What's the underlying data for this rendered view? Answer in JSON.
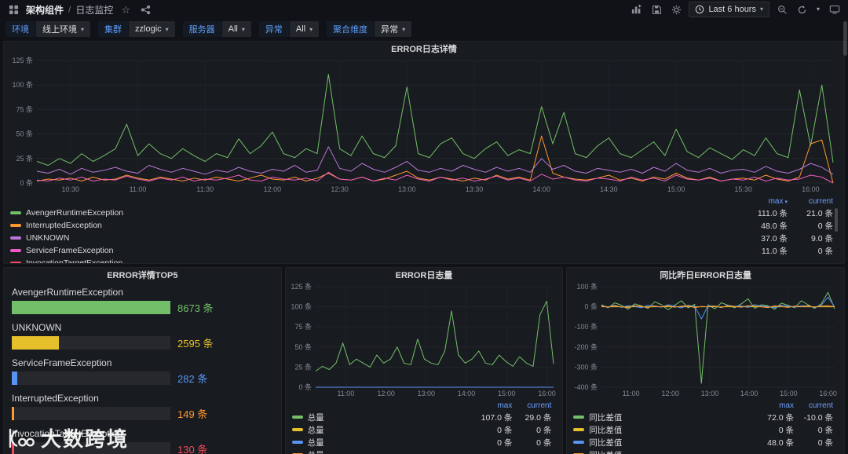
{
  "colors": {
    "green": "#73bf69",
    "orange": "#ff9830",
    "purple": "#b877d9",
    "pink": "#ee5cc0",
    "yellow": "#e6c02b",
    "blue": "#5794f2",
    "red": "#f2495c",
    "accent_blue": "#6e9fff",
    "panel_bg": "#181b1f",
    "page_bg": "#111217"
  },
  "icons": {
    "topbar_left": [
      "grid-icon",
      "star-icon",
      "share-icon"
    ],
    "topbar_right": [
      "add-panel-icon",
      "save-icon",
      "gear-icon",
      "clock-icon",
      "chevron-down-icon",
      "zoom-out-icon",
      "refresh-icon",
      "tv-icon"
    ]
  },
  "topbar": {
    "breadcrumb": {
      "section": "架构组件",
      "separator": "/",
      "page": "日志监控"
    },
    "star_glyph": "☆",
    "time_range_label": "Last 6 hours"
  },
  "filters": [
    {
      "label": "环境",
      "value": "线上环境"
    },
    {
      "label": "集群",
      "value": "zzlogic"
    },
    {
      "label": "服务器",
      "value": "All"
    },
    {
      "label": "异常",
      "value": "All"
    },
    {
      "label": "聚合维度",
      "value": "异常"
    }
  ],
  "main_panel": {
    "title": "ERROR日志详情",
    "legend": {
      "headers": {
        "max": "max",
        "current": "current"
      },
      "rows": [
        {
          "name": "AvengerRuntimeException",
          "color": "#73bf69",
          "max": "111.0 条",
          "current": "21.0 条"
        },
        {
          "name": "InterruptedException",
          "color": "#ff9830",
          "max": "48.0 条",
          "current": "0 条"
        },
        {
          "name": "UNKNOWN",
          "color": "#b877d9",
          "max": "37.0 条",
          "current": "9.0 条"
        },
        {
          "name": "ServiceFrameException",
          "color": "#ee5cc0",
          "max": "11.0 条",
          "current": "0 条"
        },
        {
          "name": "InvocationTargetException",
          "color": "#f2495c",
          "max": "",
          "current": ""
        }
      ]
    }
  },
  "bottom_panels": {
    "top5": {
      "title": "ERROR详情TOP5",
      "max_value": 8673,
      "rows": [
        {
          "name": "AvengerRuntimeException",
          "value": 8673,
          "value_label": "8673 条",
          "color": "#73bf69"
        },
        {
          "name": "UNKNOWN",
          "value": 2595,
          "value_label": "2595 条",
          "color": "#e6c02b"
        },
        {
          "name": "ServiceFrameException",
          "value": 282,
          "value_label": "282 条",
          "color": "#5794f2"
        },
        {
          "name": "InterruptedException",
          "value": 149,
          "value_label": "149 条",
          "color": "#ff9830"
        },
        {
          "name": "InvocationTargetException",
          "value": 130,
          "value_label": "130 条",
          "color": "#f2495c"
        }
      ]
    },
    "volume": {
      "title": "ERROR日志量",
      "legend": {
        "headers": {
          "max": "max",
          "current": "current"
        },
        "rows": [
          {
            "name": "总量",
            "color": "#73bf69",
            "max": "107.0 条",
            "current": "29.0 条"
          },
          {
            "name": "总量",
            "color": "#e6c02b",
            "max": "0 条",
            "current": "0 条"
          },
          {
            "name": "总量",
            "color": "#5794f2",
            "max": "0 条",
            "current": "0 条"
          },
          {
            "name": "总量",
            "color": "#ff9830",
            "max": "",
            "current": ""
          }
        ]
      }
    },
    "compare": {
      "title": "同比昨日ERROR日志量",
      "legend": {
        "headers": {
          "max": "max",
          "current": "current"
        },
        "rows": [
          {
            "name": "同比差值",
            "color": "#73bf69",
            "max": "72.0 条",
            "current": "-10.0 条"
          },
          {
            "name": "同比差值",
            "color": "#e6c02b",
            "max": "0 条",
            "current": "0 条"
          },
          {
            "name": "同比差值",
            "color": "#5794f2",
            "max": "48.0 条",
            "current": "0 条"
          },
          {
            "name": "同比差值",
            "color": "#ff9830",
            "max": "",
            "current": ""
          }
        ]
      }
    }
  },
  "chart_data": [
    {
      "id": "error-detail",
      "type": "line",
      "title": "ERROR日志详情",
      "x_start": "10:15",
      "x_end": "16:10",
      "x_ticks": [
        "10:30",
        "11:00",
        "11:30",
        "12:00",
        "12:30",
        "13:00",
        "13:30",
        "14:00",
        "14:30",
        "15:00",
        "15:30",
        "16:00"
      ],
      "ylim": [
        0,
        125
      ],
      "y_ticks": [
        0,
        25,
        50,
        75,
        100,
        125
      ],
      "y_unit": "条",
      "grid": true,
      "legend_position": "bottom",
      "y_label_width": 36,
      "series": [
        {
          "name": "AvengerRuntimeException",
          "color": "#73bf69",
          "values": [
            22,
            18,
            25,
            20,
            30,
            22,
            28,
            35,
            60,
            28,
            40,
            30,
            25,
            35,
            28,
            22,
            30,
            26,
            45,
            30,
            38,
            52,
            30,
            26,
            35,
            30,
            111,
            35,
            28,
            48,
            30,
            26,
            38,
            98,
            30,
            26,
            40,
            46,
            30,
            25,
            35,
            42,
            28,
            34,
            30,
            78,
            40,
            72,
            30,
            26,
            38,
            46,
            30,
            26,
            34,
            42,
            28,
            55,
            32,
            26,
            36,
            30,
            24,
            34,
            28,
            46,
            30,
            26,
            95,
            38,
            100,
            21
          ]
        },
        {
          "name": "InterruptedException",
          "color": "#ff9830",
          "values": [
            2,
            4,
            3,
            5,
            2,
            6,
            3,
            4,
            8,
            5,
            3,
            6,
            4,
            2,
            5,
            3,
            6,
            4,
            2,
            5,
            8,
            4,
            3,
            6,
            2,
            5,
            10,
            4,
            3,
            6,
            2,
            4,
            8,
            12,
            5,
            3,
            6,
            4,
            2,
            5,
            3,
            8,
            4,
            6,
            3,
            48,
            10,
            6,
            4,
            3,
            5,
            8,
            3,
            5,
            2,
            6,
            4,
            10,
            5,
            3,
            6,
            2,
            4,
            5,
            3,
            8,
            4,
            2,
            6,
            40,
            44,
            0
          ]
        },
        {
          "name": "UNKNOWN",
          "color": "#b877d9",
          "values": [
            12,
            10,
            14,
            9,
            15,
            11,
            13,
            16,
            12,
            10,
            18,
            14,
            11,
            15,
            12,
            9,
            13,
            11,
            16,
            12,
            10,
            14,
            12,
            18,
            11,
            13,
            37,
            15,
            12,
            20,
            14,
            11,
            16,
            22,
            13,
            11,
            15,
            12,
            18,
            14,
            11,
            16,
            12,
            15,
            11,
            25,
            14,
            18,
            12,
            10,
            15,
            13,
            11,
            14,
            10,
            16,
            12,
            20,
            13,
            11,
            15,
            10,
            13,
            14,
            11,
            17,
            12,
            10,
            14,
            20,
            16,
            9
          ]
        },
        {
          "name": "ServiceFrameException",
          "color": "#ee5cc0",
          "values": [
            3,
            2,
            5,
            3,
            6,
            2,
            4,
            3,
            7,
            4,
            2,
            5,
            3,
            6,
            2,
            4,
            3,
            5,
            8,
            3,
            2,
            6,
            4,
            3,
            5,
            2,
            11,
            4,
            3,
            6,
            2,
            5,
            3,
            8,
            4,
            2,
            6,
            3,
            5,
            2,
            4,
            7,
            3,
            5,
            2,
            9,
            4,
            6,
            3,
            2,
            5,
            4,
            2,
            6,
            3,
            5,
            2,
            8,
            4,
            3,
            5,
            2,
            4,
            3,
            6,
            2,
            5,
            3,
            4,
            8,
            6,
            0
          ]
        }
      ]
    },
    {
      "id": "error-volume",
      "type": "line",
      "title": "ERROR日志量",
      "x_start": "10:15",
      "x_end": "16:10",
      "x_ticks": [
        "11:00",
        "12:00",
        "13:00",
        "14:00",
        "15:00",
        "16:00"
      ],
      "ylim": [
        0,
        125
      ],
      "y_ticks": [
        0,
        25,
        50,
        75,
        100,
        125
      ],
      "y_unit": "条",
      "grid": true,
      "legend_position": "bottom",
      "y_label_width": 34,
      "series": [
        {
          "name": "总量",
          "color": "#73bf69",
          "values": [
            20,
            26,
            22,
            30,
            55,
            28,
            35,
            30,
            25,
            40,
            30,
            35,
            50,
            30,
            28,
            60,
            35,
            30,
            28,
            45,
            95,
            40,
            30,
            35,
            45,
            30,
            28,
            40,
            32,
            26,
            38,
            30,
            26,
            90,
            107,
            29
          ]
        },
        {
          "name": "总量",
          "color": "#e6c02b",
          "values": [
            0,
            0,
            0,
            0,
            0,
            0,
            0,
            0,
            0,
            0,
            0,
            0,
            0,
            0,
            0,
            0,
            0,
            0,
            0,
            0,
            0,
            0,
            0,
            0,
            0,
            0,
            0,
            0,
            0,
            0,
            0,
            0,
            0,
            0,
            0,
            0
          ]
        },
        {
          "name": "总量",
          "color": "#5794f2",
          "values": [
            0,
            0,
            0,
            0,
            0,
            0,
            0,
            0,
            0,
            0,
            0,
            0,
            0,
            0,
            0,
            0,
            0,
            0,
            0,
            0,
            0,
            0,
            0,
            0,
            0,
            0,
            0,
            0,
            0,
            0,
            0,
            0,
            0,
            0,
            0,
            0
          ]
        }
      ]
    },
    {
      "id": "error-compare",
      "type": "line",
      "title": "同比昨日ERROR日志量",
      "x_start": "10:15",
      "x_end": "16:10",
      "x_ticks": [
        "11:00",
        "12:00",
        "13:00",
        "14:00",
        "15:00",
        "16:00"
      ],
      "ylim": [
        -400,
        100
      ],
      "y_ticks": [
        100,
        0,
        -100,
        -200,
        -300,
        -400
      ],
      "y_unit": "条",
      "grid": true,
      "legend_position": "bottom",
      "y_label_width": 40,
      "series": [
        {
          "name": "同比差值",
          "color": "#73bf69",
          "values": [
            10,
            -5,
            20,
            8,
            -12,
            15,
            5,
            -8,
            25,
            10,
            -15,
            8,
            30,
            -5,
            12,
            -380,
            10,
            -10,
            20,
            8,
            -5,
            15,
            40,
            -8,
            10,
            5,
            -12,
            18,
            8,
            -5,
            30,
            10,
            -8,
            15,
            72,
            -10
          ]
        },
        {
          "name": "同比差值",
          "color": "#e6c02b",
          "values": [
            0,
            0,
            0,
            0,
            0,
            0,
            0,
            0,
            0,
            0,
            0,
            0,
            0,
            0,
            0,
            0,
            0,
            0,
            0,
            0,
            0,
            0,
            0,
            0,
            0,
            0,
            0,
            0,
            0,
            0,
            0,
            0,
            0,
            0,
            0,
            0
          ]
        },
        {
          "name": "同比差值",
          "color": "#5794f2",
          "values": [
            5,
            0,
            8,
            -3,
            6,
            2,
            -5,
            8,
            3,
            -2,
            10,
            4,
            -6,
            8,
            2,
            -60,
            6,
            3,
            -4,
            8,
            2,
            5,
            -3,
            10,
            4,
            2,
            -5,
            8,
            3,
            -2,
            6,
            4,
            -3,
            8,
            48,
            0
          ]
        },
        {
          "name": "同比差值",
          "color": "#ff9830",
          "values": [
            3,
            -2,
            5,
            0,
            -4,
            6,
            2,
            -3,
            4,
            0,
            5,
            -2,
            3,
            6,
            -4,
            2,
            0,
            4,
            -3,
            5,
            2,
            -2,
            6,
            3,
            0,
            -4,
            5,
            2,
            -3,
            4,
            0,
            6,
            -2,
            3,
            5,
            0
          ]
        }
      ]
    }
  ],
  "watermark": {
    "text": "大数跨境"
  }
}
